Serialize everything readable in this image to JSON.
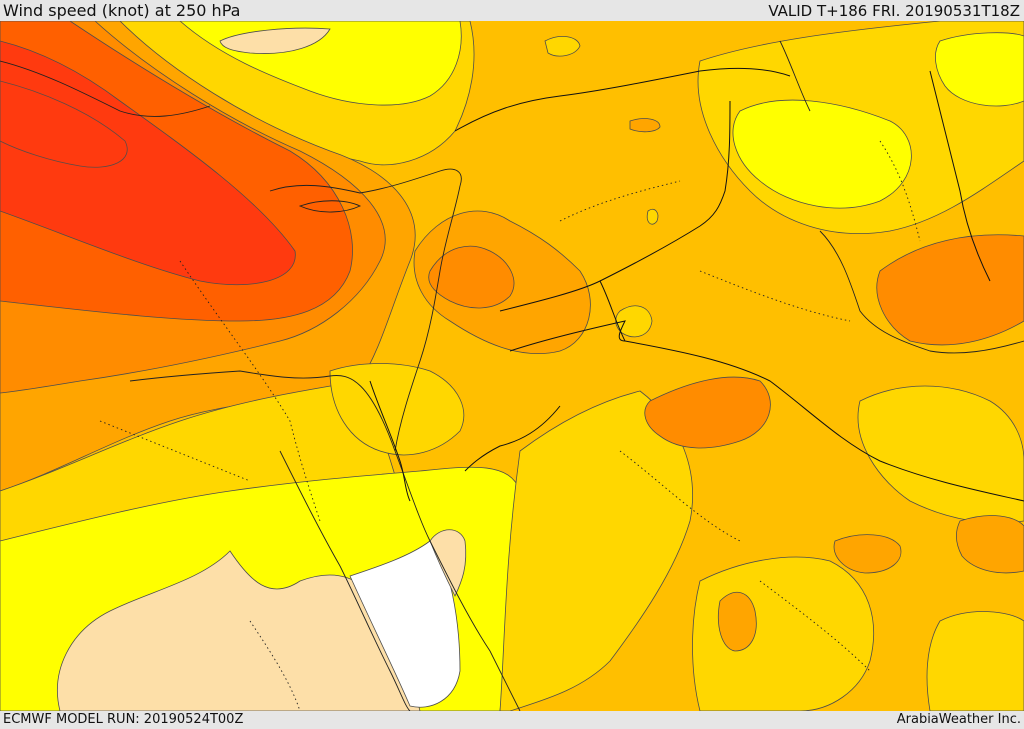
{
  "header": {
    "title": "Wind speed (knot) at 250 hPa",
    "valid": "VALID T+186 FRI. 20190531T18Z"
  },
  "footer": {
    "model_run": "ECMWF MODEL RUN: 20190524T00Z",
    "credit": "ArabiaWeather Inc."
  },
  "map": {
    "field": "wind speed at 250 hPa",
    "fill_colors": {
      "white": "#ffffff",
      "pale": "#fddfa8",
      "yellow": "#ffff00",
      "gold": "#ffd700",
      "amber": "#ffbf00",
      "orange": "#ffa500",
      "dark_orange": "#ff8c00",
      "red_orange": "#ff6000",
      "red": "#ff3a0f"
    },
    "contour_color": "#4d4d4d",
    "border_color": "#111111"
  }
}
